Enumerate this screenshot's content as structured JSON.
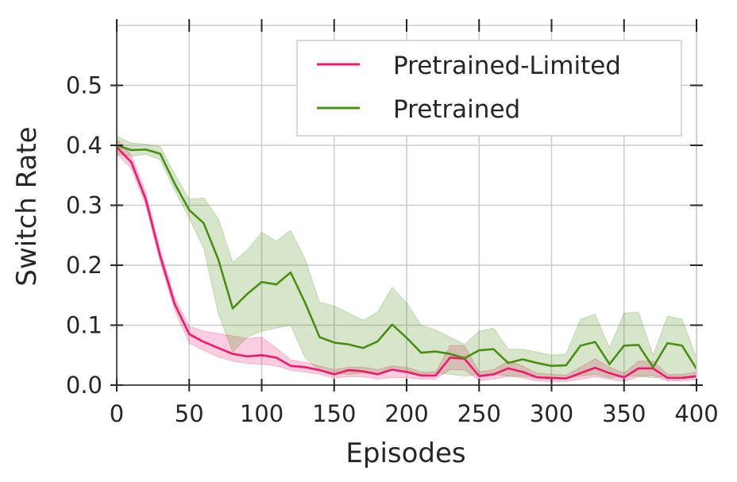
{
  "chart_data": {
    "type": "line",
    "title": "",
    "xlabel": "Episodes",
    "ylabel": "Switch Rate",
    "xlim": [
      0,
      400
    ],
    "ylim": [
      0,
      0.6
    ],
    "xticks": [
      0,
      50,
      100,
      150,
      200,
      250,
      300,
      350,
      400
    ],
    "xtick_labels": [
      "0",
      "50",
      "100",
      "150",
      "200",
      "250",
      "300",
      "350",
      "400"
    ],
    "yticks": [
      0.0,
      0.1,
      0.2,
      0.3,
      0.4,
      0.5
    ],
    "ytick_labels": [
      "0.0",
      "0.1",
      "0.2",
      "0.3",
      "0.4",
      "0.5"
    ],
    "grid": true,
    "legend_position": "top-right",
    "x": [
      0,
      10,
      20,
      30,
      40,
      50,
      60,
      70,
      80,
      90,
      100,
      110,
      120,
      130,
      140,
      150,
      160,
      170,
      180,
      190,
      200,
      210,
      220,
      230,
      240,
      250,
      260,
      270,
      280,
      290,
      300,
      310,
      320,
      330,
      340,
      350,
      360,
      370,
      380,
      390,
      400
    ],
    "series": [
      {
        "name": "Pretrained-Limited",
        "color": "#f0186c",
        "values": [
          0.397,
          0.372,
          0.31,
          0.215,
          0.135,
          0.085,
          0.072,
          0.062,
          0.052,
          0.048,
          0.05,
          0.046,
          0.032,
          0.03,
          0.025,
          0.018,
          0.025,
          0.023,
          0.018,
          0.026,
          0.022,
          0.016,
          0.016,
          0.046,
          0.044,
          0.015,
          0.018,
          0.028,
          0.022,
          0.013,
          0.012,
          0.011,
          0.02,
          0.029,
          0.02,
          0.013,
          0.028,
          0.028,
          0.012,
          0.012,
          0.015
        ],
        "lower": [
          0.385,
          0.362,
          0.3,
          0.205,
          0.125,
          0.07,
          0.058,
          0.047,
          0.04,
          0.036,
          0.035,
          0.032,
          0.025,
          0.022,
          0.018,
          0.012,
          0.014,
          0.014,
          0.01,
          0.013,
          0.012,
          0.01,
          0.01,
          0.026,
          0.025,
          0.008,
          0.01,
          0.015,
          0.012,
          0.007,
          0.006,
          0.006,
          0.01,
          0.014,
          0.01,
          0.006,
          0.014,
          0.016,
          0.007,
          0.007,
          0.009
        ],
        "upper": [
          0.41,
          0.384,
          0.322,
          0.226,
          0.146,
          0.098,
          0.09,
          0.086,
          0.082,
          0.078,
          0.08,
          0.062,
          0.042,
          0.038,
          0.032,
          0.026,
          0.03,
          0.03,
          0.026,
          0.032,
          0.03,
          0.022,
          0.022,
          0.066,
          0.066,
          0.022,
          0.026,
          0.04,
          0.032,
          0.02,
          0.018,
          0.017,
          0.03,
          0.044,
          0.03,
          0.02,
          0.04,
          0.04,
          0.018,
          0.018,
          0.022
        ]
      },
      {
        "name": "Pretrained",
        "color": "#4a8f12",
        "values": [
          0.4,
          0.392,
          0.393,
          0.386,
          0.336,
          0.292,
          0.27,
          0.21,
          0.128,
          0.152,
          0.172,
          0.168,
          0.188,
          0.137,
          0.08,
          0.071,
          0.068,
          0.062,
          0.073,
          0.101,
          0.079,
          0.054,
          0.056,
          0.052,
          0.045,
          0.058,
          0.06,
          0.037,
          0.043,
          0.037,
          0.032,
          0.033,
          0.066,
          0.072,
          0.035,
          0.066,
          0.067,
          0.03,
          0.07,
          0.066,
          0.027
        ],
        "lower": [
          0.385,
          0.382,
          0.385,
          0.376,
          0.325,
          0.278,
          0.228,
          0.12,
          0.055,
          0.08,
          0.09,
          0.095,
          0.1,
          0.045,
          0.025,
          0.02,
          0.018,
          0.02,
          0.018,
          0.03,
          0.025,
          0.018,
          0.02,
          0.018,
          0.015,
          0.018,
          0.018,
          0.015,
          0.015,
          0.012,
          0.012,
          0.012,
          0.015,
          0.018,
          0.012,
          0.015,
          0.015,
          0.012,
          0.015,
          0.015,
          0.012
        ],
        "upper": [
          0.415,
          0.404,
          0.402,
          0.398,
          0.352,
          0.31,
          0.312,
          0.278,
          0.205,
          0.225,
          0.255,
          0.24,
          0.258,
          0.21,
          0.138,
          0.132,
          0.12,
          0.108,
          0.122,
          0.163,
          0.137,
          0.1,
          0.092,
          0.08,
          0.068,
          0.09,
          0.095,
          0.06,
          0.06,
          0.055,
          0.05,
          0.052,
          0.11,
          0.118,
          0.062,
          0.12,
          0.122,
          0.05,
          0.115,
          0.11,
          0.045
        ]
      }
    ]
  }
}
